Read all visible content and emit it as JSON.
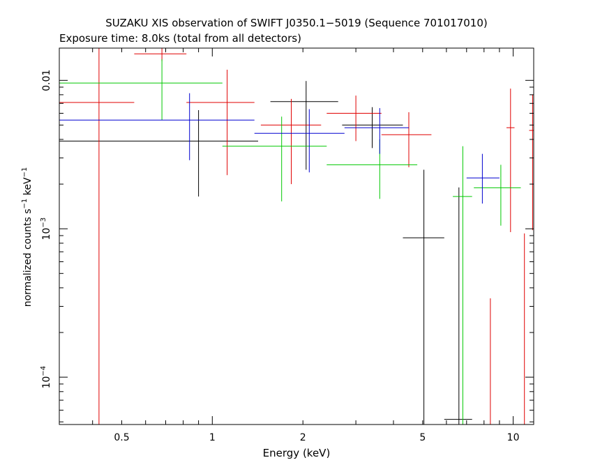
{
  "chart_data": {
    "type": "scatter",
    "title": "SUZAKU XIS observation of SWIFT J0350.1−5019 (Sequence 701017010)",
    "subtitle": "Exposure time: 8.0ks (total from all detectors)",
    "xlabel": "Energy (keV)",
    "ylabel_main": "normalized counts s",
    "ylabel_sup1": "−1",
    "ylabel_mid": " keV",
    "ylabel_sup2": "−1",
    "x_scale": "log",
    "y_scale": "log",
    "xlim": [
      0.31,
      11.7
    ],
    "ylim": [
      4.8e-05,
      0.0165
    ],
    "x_ticks": [
      {
        "value": 0.5,
        "label": "0.5"
      },
      {
        "value": 1,
        "label": "1"
      },
      {
        "value": 2,
        "label": "2"
      },
      {
        "value": 5,
        "label": "5"
      },
      {
        "value": 10,
        "label": "10"
      }
    ],
    "y_ticks": [
      {
        "value": 0.01,
        "label": "0.01",
        "base": "",
        "exp": ""
      },
      {
        "value": 0.001,
        "label": "",
        "base": "10",
        "exp": "−3"
      },
      {
        "value": 0.0001,
        "label": "",
        "base": "10",
        "exp": "−4"
      }
    ],
    "grid": false,
    "legend": "none",
    "series": [
      {
        "color": "#000000",
        "points": [
          {
            "x": 0.9,
            "xlo": 0.31,
            "xhi": 1.42,
            "y": 0.0039,
            "ylo": 0.00165,
            "yhi": 0.0063
          },
          {
            "x": 2.05,
            "xlo": 1.56,
            "xhi": 2.62,
            "y": 0.0072,
            "ylo": 0.0025,
            "yhi": 0.0099
          },
          {
            "x": 3.4,
            "xlo": 2.7,
            "xhi": 4.3,
            "y": 0.005,
            "ylo": 0.0035,
            "yhi": 0.0066
          },
          {
            "x": 5.05,
            "xlo": 4.3,
            "xhi": 5.9,
            "y": 0.00087,
            "ylo": 4.8e-05,
            "yhi": 0.0025
          },
          {
            "x": 6.6,
            "xlo": 5.9,
            "xhi": 7.3,
            "y": 5.2e-05,
            "ylo": 4.8e-05,
            "yhi": 0.0019
          }
        ]
      },
      {
        "color": "#e00000",
        "points": [
          {
            "x": 0.42,
            "xlo": 0.31,
            "xhi": 0.55,
            "y": 0.0071,
            "ylo": 4.8e-05,
            "yhi": 0.0165
          },
          {
            "x": 0.68,
            "xlo": 0.55,
            "xhi": 0.82,
            "y": 0.0151,
            "ylo": 0.0135,
            "yhi": 0.0165
          },
          {
            "x": 1.12,
            "xlo": 0.82,
            "xhi": 1.38,
            "y": 0.0071,
            "ylo": 0.0023,
            "yhi": 0.0118
          },
          {
            "x": 1.83,
            "xlo": 1.45,
            "xhi": 2.3,
            "y": 0.005,
            "ylo": 0.002,
            "yhi": 0.0075
          },
          {
            "x": 3.0,
            "xlo": 2.4,
            "xhi": 3.65,
            "y": 0.006,
            "ylo": 0.0039,
            "yhi": 0.0079
          },
          {
            "x": 4.5,
            "xlo": 3.65,
            "xhi": 5.35,
            "y": 0.0043,
            "ylo": 0.0026,
            "yhi": 0.0061
          },
          {
            "x": 8.4,
            "xlo": 8.4,
            "xhi": 8.4,
            "y": 4.8e-05,
            "ylo": 4.8e-05,
            "yhi": 0.00034
          },
          {
            "x": 9.8,
            "xlo": 9.5,
            "xhi": 10.1,
            "y": 0.0048,
            "ylo": 0.00095,
            "yhi": 0.0088
          },
          {
            "x": 10.9,
            "xlo": 10.9,
            "xhi": 10.9,
            "y": 4.8e-05,
            "ylo": 4.8e-05,
            "yhi": 0.00093
          },
          {
            "x": 11.6,
            "xlo": 11.3,
            "xhi": 11.7,
            "y": 0.0046,
            "ylo": 0.00098,
            "yhi": 0.008
          }
        ]
      },
      {
        "color": "#00c800",
        "points": [
          {
            "x": 0.68,
            "xlo": 0.31,
            "xhi": 1.08,
            "y": 0.0096,
            "ylo": 0.0054,
            "yhi": 0.0139
          },
          {
            "x": 1.7,
            "xlo": 1.08,
            "xhi": 2.4,
            "y": 0.0036,
            "ylo": 0.00153,
            "yhi": 0.0057
          },
          {
            "x": 3.6,
            "xlo": 2.4,
            "xhi": 4.8,
            "y": 0.0027,
            "ylo": 0.00159,
            "yhi": 0.004
          },
          {
            "x": 6.8,
            "xlo": 6.3,
            "xhi": 7.3,
            "y": 0.00165,
            "ylo": 4.8e-05,
            "yhi": 0.0036
          },
          {
            "x": 9.1,
            "xlo": 7.4,
            "xhi": 10.6,
            "y": 0.00189,
            "ylo": 0.00105,
            "yhi": 0.0027
          }
        ]
      },
      {
        "color": "#0000d0",
        "points": [
          {
            "x": 0.84,
            "xlo": 0.31,
            "xhi": 1.38,
            "y": 0.0054,
            "ylo": 0.0029,
            "yhi": 0.0082
          },
          {
            "x": 2.1,
            "xlo": 1.38,
            "xhi": 2.75,
            "y": 0.0044,
            "ylo": 0.0024,
            "yhi": 0.0064
          },
          {
            "x": 3.6,
            "xlo": 2.75,
            "xhi": 4.5,
            "y": 0.0048,
            "ylo": 0.0032,
            "yhi": 0.0065
          },
          {
            "x": 7.9,
            "xlo": 7.0,
            "xhi": 9.0,
            "y": 0.0022,
            "ylo": 0.00148,
            "yhi": 0.0032
          }
        ]
      }
    ]
  }
}
